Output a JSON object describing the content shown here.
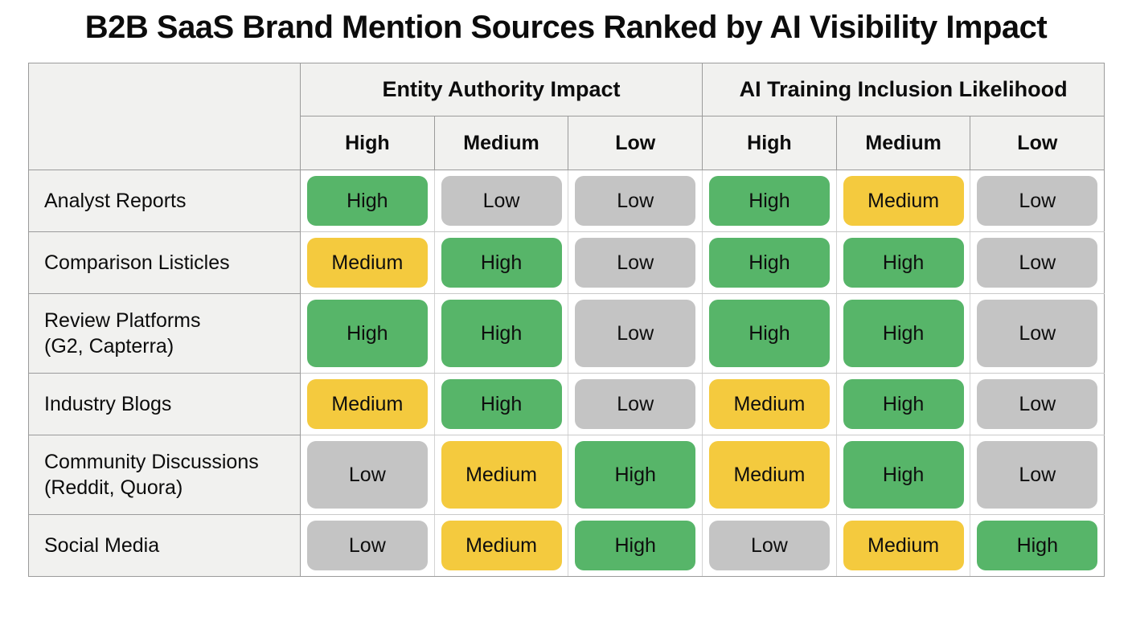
{
  "title": "B2B SaaS Brand Mention Sources Ranked by AI Visibility Impact",
  "chart_data": {
    "type": "table",
    "title": "B2B SaaS Brand Mention Sources Ranked by AI Visibility Impact",
    "column_groups": [
      "Entity Authority Impact",
      "AI Training Inclusion Likelihood"
    ],
    "subheaders": [
      "High",
      "Medium",
      "Low",
      "High",
      "Medium",
      "Low"
    ],
    "rows": [
      {
        "label": "Analyst Reports",
        "sublabel": "",
        "cells": [
          "High",
          "Low",
          "Low",
          "High",
          "Medium",
          "Low"
        ]
      },
      {
        "label": "Comparison Listicles",
        "sublabel": "",
        "cells": [
          "Medium",
          "High",
          "Low",
          "High",
          "High",
          "Low"
        ]
      },
      {
        "label": "Review Platforms",
        "sublabel": "(G2, Capterra)",
        "cells": [
          "High",
          "High",
          "Low",
          "High",
          "High",
          "Low"
        ]
      },
      {
        "label": "Industry Blogs",
        "sublabel": "",
        "cells": [
          "Medium",
          "High",
          "Low",
          "Medium",
          "High",
          "Low"
        ]
      },
      {
        "label": "Community Discussions",
        "sublabel": "(Reddit, Quora)",
        "cells": [
          "Low",
          "Medium",
          "High",
          "Medium",
          "High",
          "Low"
        ]
      },
      {
        "label": "Social Media",
        "sublabel": "",
        "cells": [
          "Low",
          "Medium",
          "High",
          "Low",
          "Medium",
          "High"
        ]
      }
    ],
    "legend_colors": {
      "High": "#57b569",
      "Medium": "#f4ca3e",
      "Low": "#c4c4c4"
    }
  }
}
